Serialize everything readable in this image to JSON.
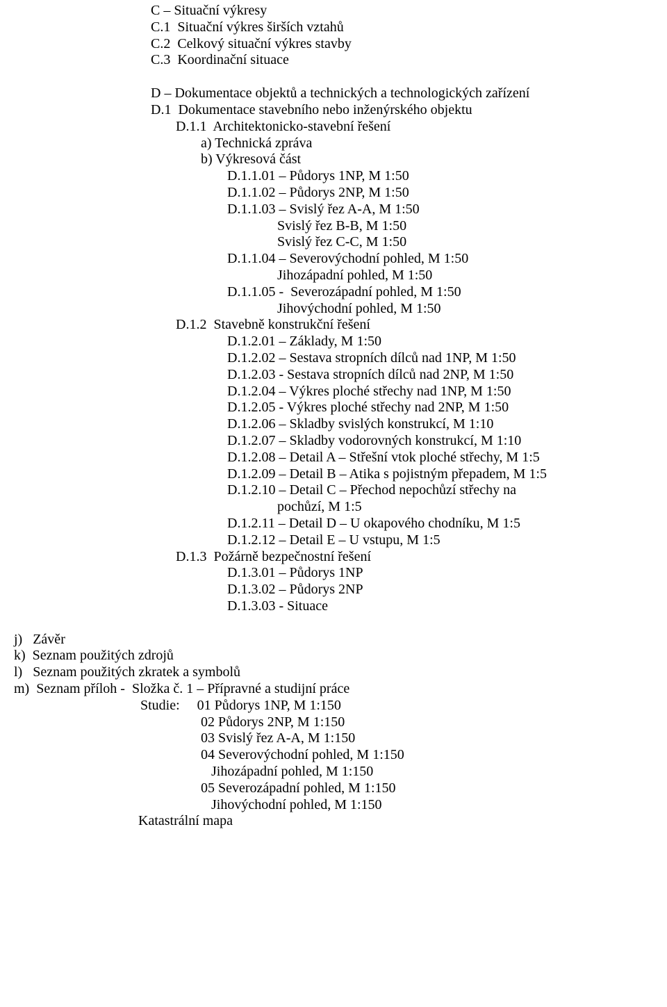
{
  "secC": {
    "title": "C – Situační výkresy",
    "c1": "C.1  Situační výkres širších vztahů",
    "c2": "C.2  Celkový situační výkres stavby",
    "c3": "C.3  Koordinační situace"
  },
  "secD": {
    "title": "D – Dokumentace objektů a technických a technologických zařízení",
    "d1": "D.1  Dokumentace stavebního nebo inženýrského objektu",
    "d11": "D.1.1  Architektonicko-stavební řešení",
    "d11_a": "a) Technická zpráva",
    "d11_b": "b) Výkresová část",
    "d1101": "D.1.1.01 – Půdorys 1NP, M 1:50",
    "d1102": "D.1.1.02 – Půdorys 2NP, M 1:50",
    "d1103": "D.1.1.03 – Svislý řez A-A, M 1:50",
    "d1103_b": "Svislý řez B-B, M 1:50",
    "d1103_c": "Svislý řez C-C, M 1:50",
    "d1104": "D.1.1.04 – Severovýchodní pohled, M 1:50",
    "d1104_b": "Jihozápadní pohled, M 1:50",
    "d1105": "D.1.1.05 -  Severozápadní pohled, M 1:50",
    "d1105_b": "Jihovýchodní pohled, M 1:50",
    "d12": "D.1.2  Stavebně konstrukční řešení",
    "d1201": "D.1.2.01 – Základy, M 1:50",
    "d1202": "D.1.2.02 – Sestava stropních dílců nad 1NP, M 1:50",
    "d1203": "D.1.2.03 - Sestava stropních dílců nad 2NP, M 1:50",
    "d1204": "D.1.2.04 – Výkres ploché střechy nad 1NP, M 1:50",
    "d1205": "D.1.2.05 - Výkres ploché střechy nad 2NP, M 1:50",
    "d1206": "D.1.2.06 – Skladby svislých konstrukcí, M 1:10",
    "d1207": "D.1.2.07 – Skladby vodorovných konstrukcí, M 1:10",
    "d1208": "D.1.2.08 – Detail A – Střešní vtok ploché střechy, M 1:5",
    "d1209": "D.1.2.09 – Detail B – Atika s pojistným přepadem, M 1:5",
    "d1210": "D.1.2.10 – Detail C – Přechod nepochůzí střechy na",
    "d1210_b": "pochůzí, M 1:5",
    "d1211": "D.1.2.11 – Detail D – U okapového chodníku, M 1:5",
    "d1212": "D.1.2.12 – Detail E – U vstupu, M 1:5",
    "d13": "D.1.3  Požárně bezpečnostní řešení",
    "d1301": "D.1.3.01 – Půdorys 1NP",
    "d1302": "D.1.3.02 – Půdorys 2NP",
    "d1303": "D.1.3.03 - Situace"
  },
  "lower": {
    "j": "j)   Závěr",
    "k": "k)  Seznam použitých zdrojů",
    "l": "l)   Seznam použitých zkratek a symbolů",
    "m": "m)  Seznam příloh -  Složka č. 1 – Přípravné a studijní práce",
    "studie": "Studie:     01 Půdorys 1NP, M 1:150",
    "s02": "02 Půdorys 2NP, M 1:150",
    "s03": "03 Svislý řez A-A, M 1:150",
    "s04": "04 Severovýchodní pohled, M 1:150",
    "s04b": "   Jihozápadní pohled, M 1:150",
    "s05": "05 Severozápadní pohled, M 1:150",
    "s05b": "   Jihovýchodní pohled, M 1:150",
    "kat": "Katastrální mapa"
  }
}
